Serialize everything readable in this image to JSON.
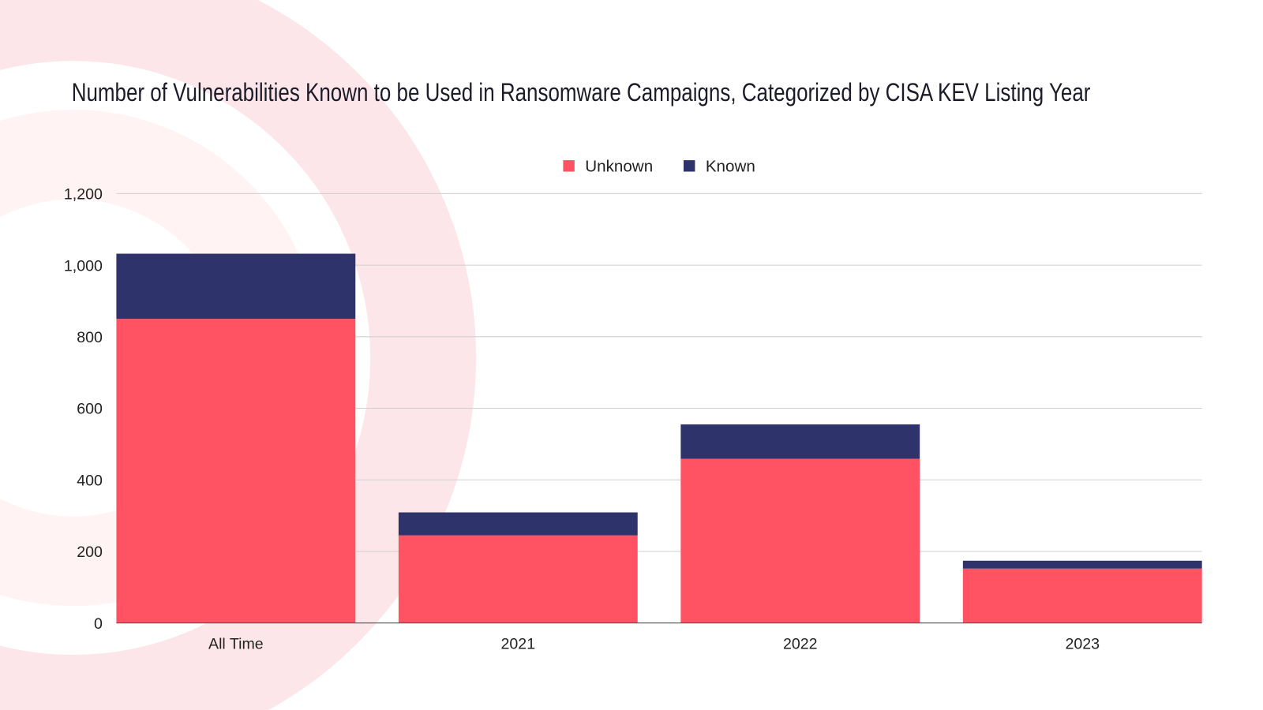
{
  "chart_data": {
    "type": "bar",
    "stacked": true,
    "title": "Number of Vulnerabilities Known to be Used in Ransomware Campaigns, Categorized by CISA KEV Listing Year",
    "xlabel": "",
    "ylabel": "",
    "categories": [
      "All Time",
      "2021",
      "2022",
      "2023"
    ],
    "series": [
      {
        "name": "Unknown",
        "color": "#ff5363",
        "values": [
          850,
          245,
          459,
          152
        ]
      },
      {
        "name": "Known",
        "color": "#2f336c",
        "values": [
          182,
          64,
          96,
          22
        ]
      }
    ],
    "ylim": [
      0,
      1200
    ],
    "yticks": [
      0,
      200,
      400,
      600,
      800,
      1000,
      1200
    ],
    "ytick_labels": [
      "0",
      "200",
      "400",
      "600",
      "800",
      "1,000",
      "1,200"
    ],
    "grid": true,
    "legend_position": "top-center",
    "background_ring_color": "#fde6e9"
  }
}
